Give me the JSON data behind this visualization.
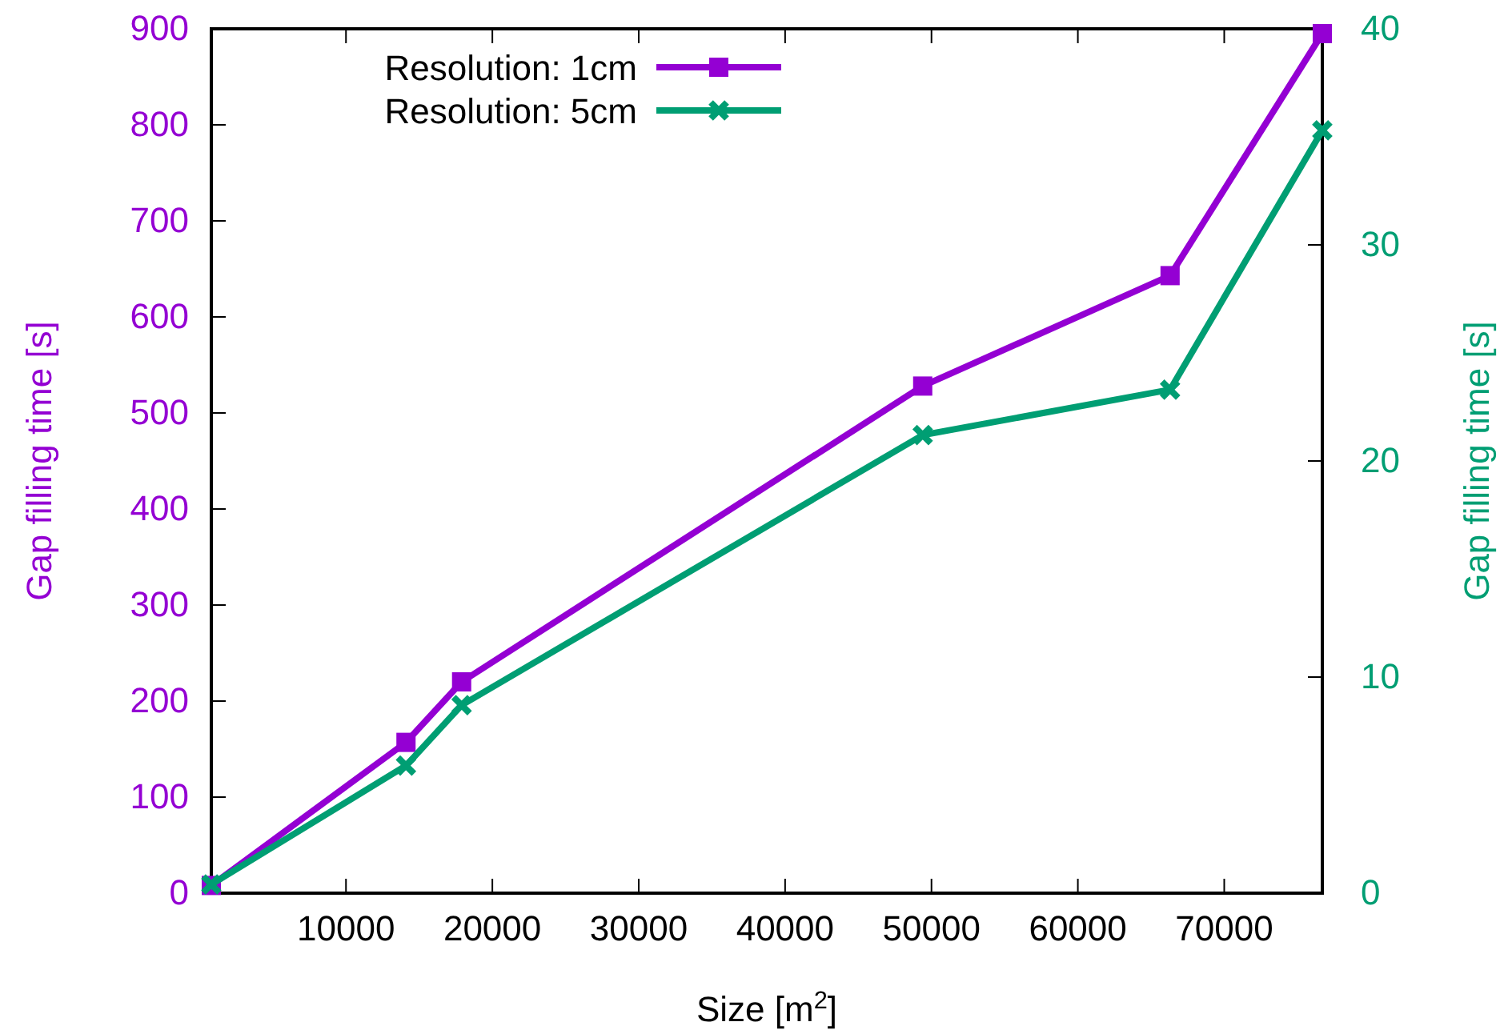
{
  "chart_data": {
    "type": "line",
    "xlabel": "Size [m$^{2}$]",
    "ylabel": "Gap filling time [s]",
    "y2label": "Gap filling time [s]",
    "xlim": [
      800,
      76700
    ],
    "xticks": [
      10000,
      20000,
      30000,
      40000,
      50000,
      60000,
      70000
    ],
    "ylim": [
      0,
      900
    ],
    "yticks": [
      0,
      100,
      200,
      300,
      400,
      500,
      600,
      700,
      800,
      900
    ],
    "y2lim": [
      0,
      40
    ],
    "y2ticks": [
      0,
      10,
      20,
      30,
      40
    ],
    "legend": "top left",
    "grid": false,
    "series": [
      {
        "name": "Resolution: 1cm",
        "color": "#9400d3",
        "marker": "square",
        "x": [
          800,
          14100,
          17900,
          49400,
          66300,
          76700
        ],
        "values": [
          8,
          157,
          220,
          528,
          643,
          895
        ]
      },
      {
        "name": "Resolution: 5cm",
        "color": "#009e73",
        "marker": "cross",
        "axis": "y2",
        "x": [
          800,
          14100,
          17900,
          49400,
          66300,
          76700
        ],
        "values": [
          0.4,
          5.9,
          8.7,
          21.2,
          23.3,
          35.3
        ]
      }
    ]
  }
}
